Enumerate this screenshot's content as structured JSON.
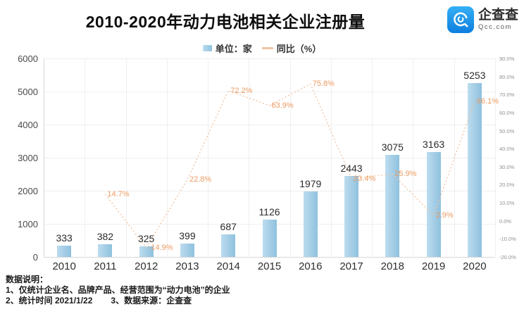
{
  "header": {
    "title": "2010-2020年动力电池相关企业注册量",
    "logo": {
      "name": "企查查",
      "domain": "Qcc.com"
    }
  },
  "legend": {
    "bar_label": "单位：家",
    "line_label": "同比（%）"
  },
  "chart_data": {
    "type": "bar+line",
    "title": "2010-2020年动力电池相关企业注册量",
    "categories": [
      "2010",
      "2011",
      "2012",
      "2013",
      "2014",
      "2015",
      "2016",
      "2017",
      "2018",
      "2019",
      "2020"
    ],
    "series": [
      {
        "name": "单位：家",
        "type": "bar",
        "values": [
          333,
          382,
          325,
          399,
          687,
          1126,
          1979,
          2443,
          3075,
          3163,
          5253
        ]
      },
      {
        "name": "同比（%）",
        "type": "line",
        "values": [
          null,
          14.7,
          -14.9,
          22.8,
          72.2,
          63.9,
          75.8,
          23.4,
          25.9,
          2.9,
          66.1
        ]
      }
    ],
    "bar_labels": [
      "333",
      "382",
      "325",
      "399",
      "687",
      "1126",
      "1979",
      "2443",
      "3075",
      "3163",
      "5253"
    ],
    "line_labels": [
      null,
      "14.7%",
      "-14.9%",
      "22.8%",
      "72.2%",
      "63.9%",
      "75.8%",
      "23.4%",
      "25.9%",
      "2.9%",
      "66.1%"
    ],
    "left_axis": {
      "min": 0,
      "max": 6000,
      "ticks": [
        "6000",
        "5000",
        "4000",
        "3000",
        "2000",
        "1000",
        "0"
      ]
    },
    "right_axis": {
      "min": -20,
      "max": 90,
      "ticks": [
        "90.0%",
        "80.0%",
        "70.0%",
        "60.0%",
        "50.0%",
        "40.0%",
        "30.0%",
        "20.0%",
        "10.0%",
        "0.0%",
        "-10.0%",
        "-20.0%"
      ]
    },
    "grid": true,
    "legend_position": "top-center"
  },
  "footnote": {
    "heading": "数据说明：",
    "line1": "1、仅统计企业名、品牌产品、经营范围为“动力电池”的企业",
    "line2": "2、统计时间 2021/1/22",
    "line3": "3、数据来源：企查查"
  },
  "colors": {
    "bar_light": "#bcdcef",
    "bar_dark": "#8fc1de",
    "line": "#f2c3a2",
    "line_label": "#ec9b62",
    "grid": "#efefef",
    "axis": "#d8d8d8",
    "logo_blue_top": "#35aff5",
    "logo_blue_bottom": "#0e7fe0"
  }
}
